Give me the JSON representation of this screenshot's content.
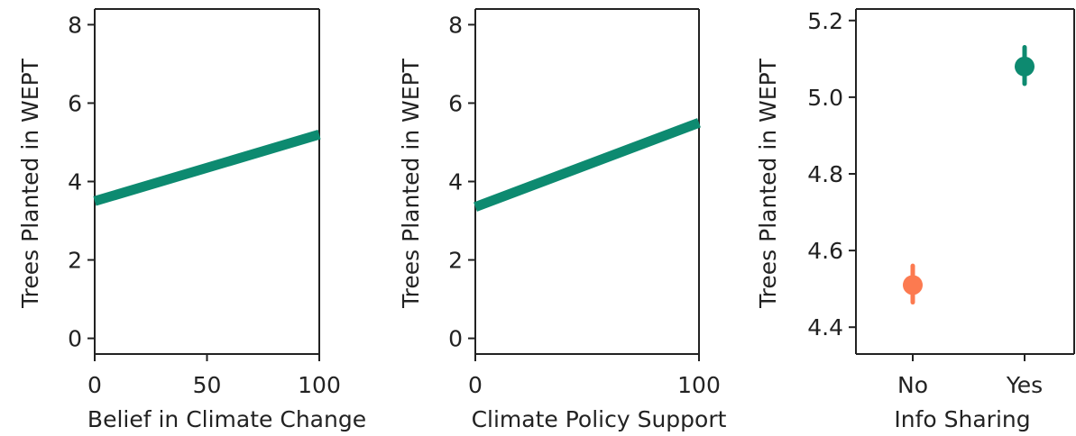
{
  "chart_data": [
    {
      "type": "line",
      "xlabel": "Belief in Climate Change",
      "ylabel": "Trees Planted in WEPT",
      "xlim": [
        0,
        100
      ],
      "ylim": [
        -0.4,
        8.4
      ],
      "xticks": [
        0,
        50,
        100
      ],
      "xtick_labels": [
        "0",
        "50",
        "100"
      ],
      "yticks": [
        0,
        2,
        4,
        6,
        8
      ],
      "ytick_labels": [
        "0",
        "2",
        "4",
        "6",
        "8"
      ],
      "series": [
        {
          "x": [
            0,
            100
          ],
          "y": [
            3.5,
            5.2
          ],
          "color": "#0d8a70"
        }
      ],
      "grid": false
    },
    {
      "type": "line",
      "xlabel": "Climate Policy Support",
      "ylabel": "Trees Planted in WEPT",
      "xlim": [
        0,
        100
      ],
      "ylim": [
        -0.4,
        8.4
      ],
      "xticks": [
        0,
        100
      ],
      "xtick_labels": [
        "0",
        "100"
      ],
      "yticks": [
        0,
        2,
        4,
        6,
        8
      ],
      "ytick_labels": [
        "0",
        "2",
        "4",
        "6",
        "8"
      ],
      "series": [
        {
          "x": [
            0,
            100
          ],
          "y": [
            3.35,
            5.5
          ],
          "color": "#0d8a70"
        }
      ],
      "grid": false
    },
    {
      "type": "scatter",
      "xlabel": "Info Sharing",
      "ylabel": "Trees Planted in WEPT",
      "categories": [
        "No",
        "Yes"
      ],
      "ylim": [
        4.33,
        5.23
      ],
      "yticks": [
        4.4,
        4.6,
        4.8,
        5.0,
        5.2
      ],
      "ytick_labels": [
        "4.4",
        "4.6",
        "4.8",
        "5.0",
        "5.2"
      ],
      "points": [
        {
          "category": "No",
          "y": 4.51,
          "err_low": 4.465,
          "err_high": 4.56,
          "color": "#fc7a50"
        },
        {
          "category": "Yes",
          "y": 5.08,
          "err_low": 5.035,
          "err_high": 5.13,
          "color": "#0d8a70"
        }
      ],
      "grid": false
    }
  ]
}
